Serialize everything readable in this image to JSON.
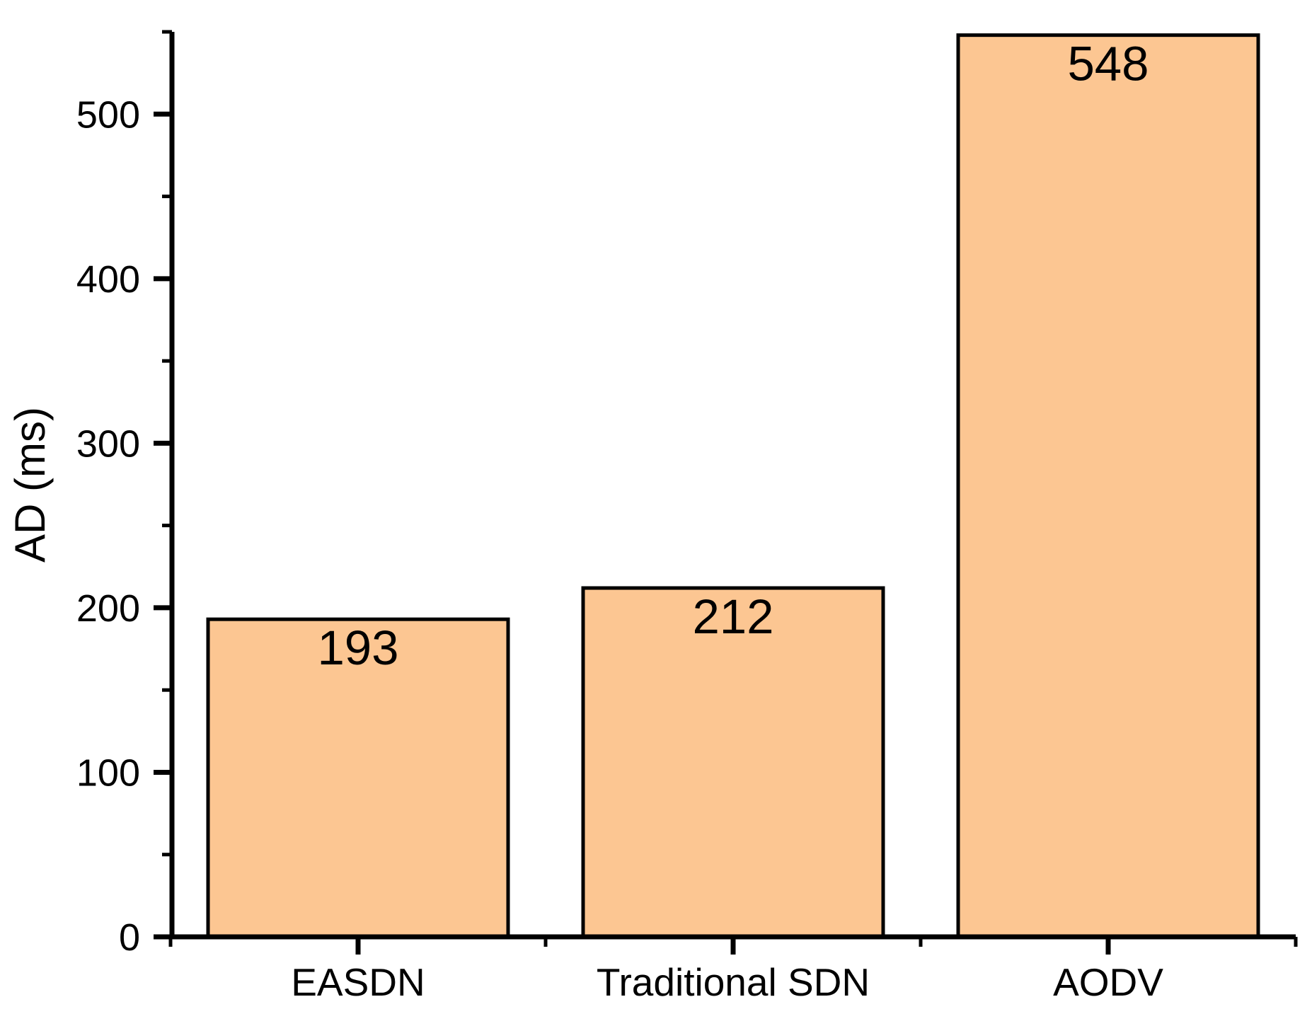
{
  "chart_data": {
    "type": "bar",
    "title": "",
    "categories": [
      "EASDN",
      "Traditional SDN",
      "AODV"
    ],
    "values": [
      193,
      212,
      548
    ],
    "value_labels": [
      "193",
      "212",
      "548"
    ],
    "xlabel": "",
    "ylabel": "AD (ms)",
    "ylim": [
      0,
      550
    ],
    "y_major_ticks": [
      0,
      100,
      200,
      300,
      400,
      500
    ],
    "y_major_tick_labels": [
      "0",
      "100",
      "200",
      "300",
      "400",
      "500"
    ],
    "y_minor_ticks": [
      50,
      150,
      250,
      350,
      450,
      550
    ],
    "x_minor_tick_positions": [
      0.5,
      1.5,
      2.5,
      3.5
    ],
    "grid": "off",
    "legend": "none",
    "bar_fill_color": "#FCC692",
    "bar_border_color": "#000000",
    "axis_color": "#000000",
    "text_color": "#000000",
    "background_color": "#FFFFFF"
  }
}
